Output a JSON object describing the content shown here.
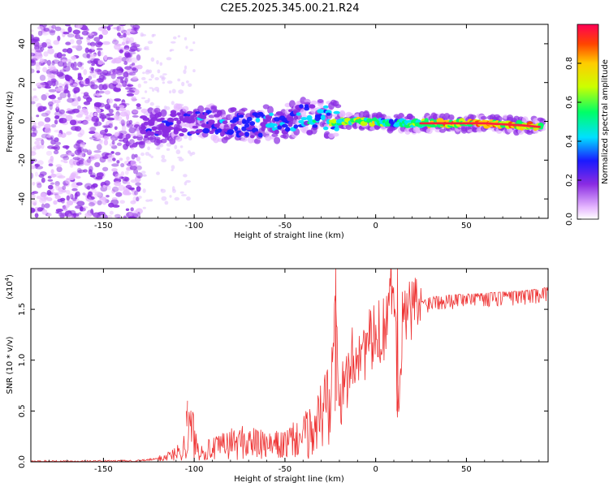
{
  "title": "C2E5.2025.345.00.21.R24",
  "chart_data": [
    {
      "type": "heatmap",
      "xlabel": "Height of straight line (km)",
      "ylabel": "Frequency (Hz)",
      "xlim": [
        -190,
        95
      ],
      "ylim": [
        -50,
        50
      ],
      "xticks": [
        -150,
        -100,
        -50,
        0,
        50
      ],
      "yticks": [
        -40,
        -20,
        0,
        20,
        40
      ],
      "xtick_labels": [
        "-150",
        "-100",
        "-50",
        "0",
        "50"
      ],
      "ytick_labels": [
        "-40",
        "-20",
        "0",
        "20",
        "40"
      ],
      "colorbar": {
        "label": "Normalized spectral amplitude",
        "range": [
          0,
          1
        ],
        "ticks": [
          0.0,
          0.2,
          0.4,
          0.6,
          0.8
        ],
        "tick_labels": [
          "0.0",
          "0.2",
          "0.4",
          "0.6",
          "0.8"
        ]
      },
      "ridge": {
        "x": [
          -128,
          -110,
          -90,
          -70,
          -55,
          -40,
          -30,
          -20,
          -10,
          0,
          10,
          30,
          60,
          80,
          92
        ],
        "freq": [
          -3,
          -1,
          -1,
          -2,
          -1,
          2,
          2,
          0,
          0,
          0,
          -1,
          -1,
          -1,
          -2,
          -3
        ],
        "amplitude": [
          0.3,
          0.4,
          0.45,
          0.45,
          0.5,
          0.55,
          0.6,
          0.8,
          0.85,
          0.85,
          0.6,
          0.9,
          0.95,
          0.95,
          0.9
        ]
      },
      "noise_region": {
        "x": [
          -190,
          -130
        ],
        "freq": [
          -50,
          50
        ],
        "amplitude": [
          0.15,
          0.3
        ]
      }
    },
    {
      "type": "line",
      "xlabel": "Height of straight line (km)",
      "ylabel": "SNR (10 * v/v)",
      "scale_label": "(x10",
      "scale_exponent": "4",
      "scale_close": ")",
      "xlim": [
        -190,
        95
      ],
      "ylim": [
        0,
        1.9
      ],
      "xticks": [
        -150,
        -100,
        -50,
        0,
        50
      ],
      "yticks": [
        0.0,
        0.5,
        1.0,
        1.5
      ],
      "xtick_labels": [
        "-150",
        "-100",
        "-50",
        "0",
        "50"
      ],
      "ytick_labels": [
        "0.0",
        "0.5",
        "1.0",
        "1.5"
      ],
      "color": "#ee3333",
      "x": [
        -190,
        -160,
        -130,
        -120,
        -110,
        -104,
        -102,
        -98,
        -90,
        -80,
        -70,
        -60,
        -50,
        -40,
        -35,
        -30,
        -25,
        -22,
        -20,
        -15,
        -10,
        -5,
        0,
        5,
        10,
        12,
        15,
        20,
        25,
        30,
        40,
        50,
        60,
        70,
        80,
        90,
        95
      ],
      "y": [
        0.005,
        0.005,
        0.01,
        0.03,
        0.08,
        0.18,
        0.35,
        0.12,
        0.12,
        0.18,
        0.2,
        0.15,
        0.17,
        0.25,
        0.3,
        0.45,
        0.7,
        1.9,
        0.5,
        0.9,
        1.1,
        1.15,
        1.2,
        1.35,
        1.9,
        0.6,
        1.4,
        1.5,
        1.55,
        1.6,
        1.62,
        1.63,
        1.64,
        1.65,
        1.66,
        1.68,
        1.7
      ]
    }
  ]
}
